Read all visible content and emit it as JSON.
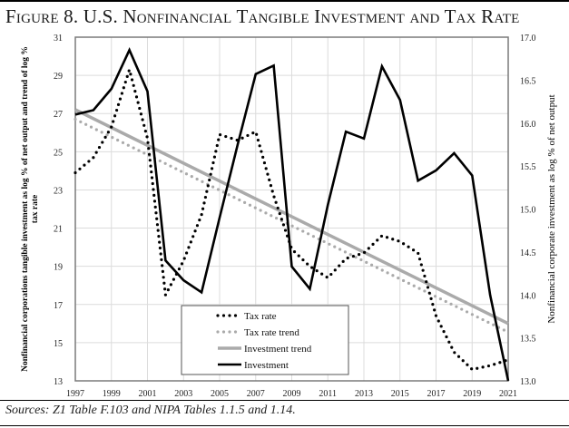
{
  "figure": {
    "title": "Figure 8. U.S. Nonfinancial Tangible Investment and Tax Rate",
    "source": "Sources: Z1 Table F.103 and NIPA Tables 1.1.5 and 1.14."
  },
  "chart_data": {
    "type": "line",
    "title": "Figure 8. U.S. Nonfinancial Tangible Investment and Tax Rate",
    "xlabel": "",
    "ylabel": "Nonfinancial corporations tangible investment as log % of net output and trend of log % tax rate",
    "y2label": "Nonfinancial corporate investment as log % of net output",
    "x": [
      1997,
      1998,
      1999,
      2000,
      2001,
      2002,
      2003,
      2004,
      2005,
      2006,
      2007,
      2008,
      2009,
      2010,
      2011,
      2012,
      2013,
      2014,
      2015,
      2016,
      2017,
      2018,
      2019,
      2020,
      2021
    ],
    "xticks": [
      "1997",
      "1999",
      "2001",
      "2003",
      "2005",
      "2007",
      "2009",
      "2011",
      "2013",
      "2015",
      "2017",
      "2019",
      "2021"
    ],
    "ylim": [
      13,
      31
    ],
    "yticks": [
      "31",
      "29",
      "27",
      "25",
      "23",
      "21",
      "19",
      "17",
      "15",
      "13"
    ],
    "y2lim": [
      13.0,
      17.0
    ],
    "y2ticks": [
      "17.0",
      "16.5",
      "16.0",
      "15.5",
      "15.0",
      "14.5",
      "14.0",
      "13.5",
      "13.0"
    ],
    "grid": true,
    "legend_position": "bottom-center",
    "series": [
      {
        "name": "Tax rate",
        "style": "dotted",
        "color": "#000000",
        "axis": "left",
        "values": [
          23.9,
          24.7,
          26.3,
          29.3,
          25.7,
          17.5,
          19.3,
          21.7,
          25.9,
          25.6,
          26.05,
          22.7,
          19.9,
          19.0,
          18.4,
          19.4,
          19.7,
          20.6,
          20.3,
          19.7,
          16.4,
          14.5,
          13.6,
          13.8,
          14.1
        ]
      },
      {
        "name": "Tax rate trend",
        "style": "dotted",
        "color": "#aaaaaa",
        "axis": "left",
        "values": [
          26.7,
          26.22,
          25.74,
          25.26,
          24.78,
          24.3,
          23.82,
          23.34,
          22.86,
          22.38,
          21.9,
          21.42,
          20.94,
          20.46,
          19.98,
          19.5,
          19.02,
          18.54,
          18.06,
          17.58,
          17.1,
          16.62,
          16.14,
          15.66,
          15.55
        ]
      },
      {
        "name": "Investment trend",
        "style": "solid",
        "color": "#aaaaaa",
        "axis": "left",
        "values": [
          27.2,
          26.73,
          26.27,
          25.8,
          25.33,
          24.87,
          24.4,
          23.93,
          23.47,
          23.0,
          22.53,
          22.07,
          21.6,
          21.13,
          20.67,
          20.2,
          19.73,
          19.27,
          18.8,
          18.33,
          17.87,
          17.4,
          16.93,
          16.47,
          16.0
        ]
      },
      {
        "name": "Investment",
        "style": "solid",
        "color": "#000000",
        "axis": "right",
        "values": [
          16.1,
          16.15,
          16.4,
          16.85,
          16.37,
          14.4,
          14.17,
          14.03,
          14.9,
          15.75,
          16.57,
          16.67,
          14.33,
          14.07,
          15.05,
          15.9,
          15.82,
          16.66,
          16.27,
          15.33,
          15.45,
          15.65,
          15.39,
          14.0,
          13.0
        ]
      }
    ]
  }
}
